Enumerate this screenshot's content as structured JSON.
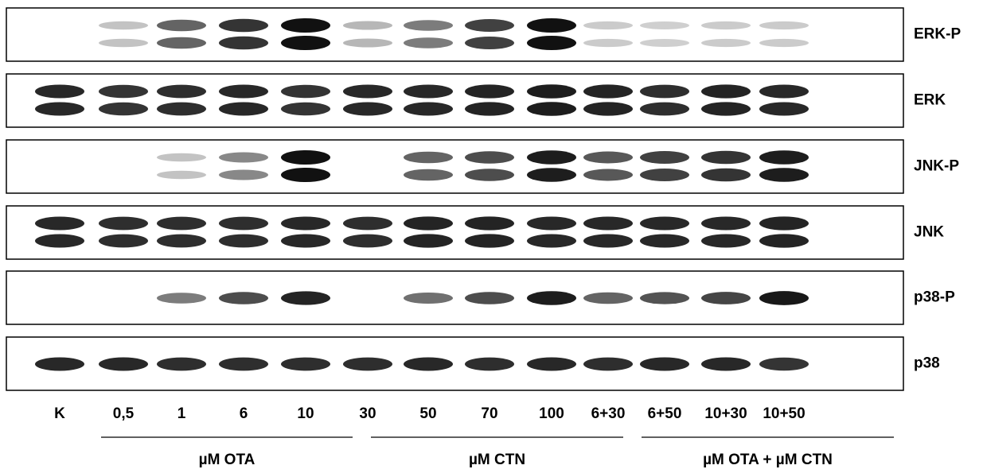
{
  "panels": [
    {
      "label": "ERK-P"
    },
    {
      "label": "ERK"
    },
    {
      "label": "JNK-P"
    },
    {
      "label": "JNK"
    },
    {
      "label": "p38-P"
    },
    {
      "label": "p38"
    }
  ],
  "lanes": [
    "K",
    "0,5",
    "1",
    "6",
    "10",
    "30",
    "50",
    "70",
    "100",
    "6+30",
    "6+50",
    "10+30",
    "10+50"
  ],
  "groups": [
    "µM OTA",
    "µM CTN",
    "µM OTA + µM CTN"
  ]
}
